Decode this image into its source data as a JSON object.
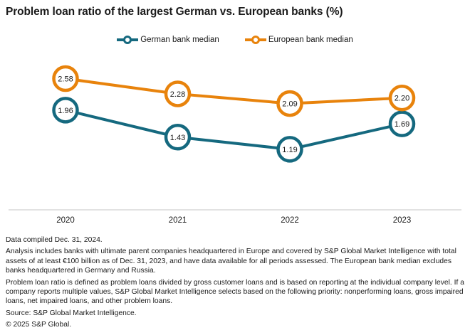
{
  "title": "Problem loan ratio of the largest German vs. European banks (%)",
  "legend": [
    {
      "label": "German bank median",
      "color": "#15697F"
    },
    {
      "label": "European bank median",
      "color": "#E8830C"
    }
  ],
  "chart_data": {
    "type": "line",
    "categories": [
      "2020",
      "2021",
      "2022",
      "2023"
    ],
    "series": [
      {
        "name": "German bank median",
        "color": "#15697F",
        "values": [
          1.96,
          1.43,
          1.19,
          1.69
        ]
      },
      {
        "name": "European bank median",
        "color": "#E8830C",
        "values": [
          2.58,
          2.28,
          2.09,
          2.2
        ]
      }
    ],
    "title": "Problem loan ratio of the largest German vs. European banks (%)",
    "xlabel": "",
    "ylabel": "",
    "ylim": [
      0,
      3.2
    ],
    "grid": false,
    "legend_position": "top",
    "marker_style": "open-circle-with-value-label",
    "axis_line_color": "#D9D9D9",
    "label_color": "#1a1a1a"
  },
  "notes": {
    "compiled": "Data compiled Dec. 31, 2024.",
    "analysis": "Analysis includes banks with ultimate parent companies headquartered in Europe and covered by S&P Global Market Intelligence with total assets of at least €100 billion as of Dec. 31, 2023, and have data available for all periods assessed. The European bank median excludes banks headquartered in Germany and Russia.",
    "definition": "Problem loan ratio is defined as problem loans divided by gross customer loans and is based on reporting at the individual company level. If a company reports multiple values, S&P Global Market Intelligence selects based on the following priority: nonperforming loans, gross impaired loans, net impaired loans, and other problem loans.",
    "source": "Source: S&P Global Market Intelligence.",
    "copyright": "© 2025 S&P Global."
  }
}
